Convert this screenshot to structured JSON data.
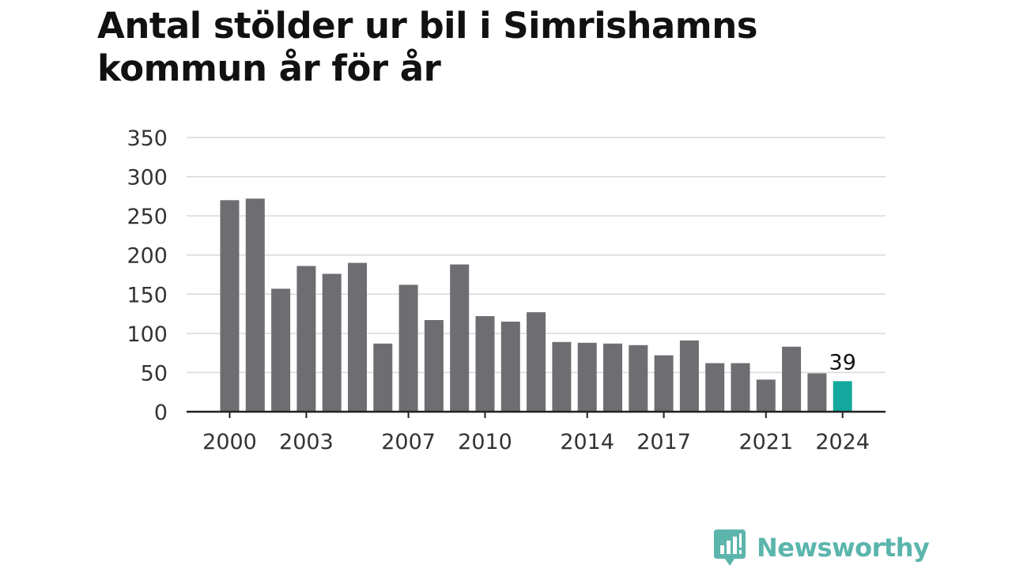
{
  "title": "Antal stölder ur bil i Simrishamns kommun år för år",
  "brand": {
    "name": "Newsworthy",
    "logo_icon": "chat-bubble-bar-chart-icon",
    "color": "#5bb5ac"
  },
  "colors": {
    "bar": "#6e6d72",
    "highlight_bar": "#13a89e",
    "gridline": "#d9d9d9",
    "axis": "#222222"
  },
  "chart_data": {
    "type": "bar",
    "title": "Antal stölder ur bil i Simrishamns kommun år för år",
    "xlabel": "",
    "ylabel": "",
    "categories": [
      2000,
      2001,
      2002,
      2003,
      2004,
      2005,
      2006,
      2007,
      2008,
      2009,
      2010,
      2011,
      2012,
      2013,
      2014,
      2015,
      2016,
      2017,
      2018,
      2019,
      2020,
      2021,
      2022,
      2023,
      2024
    ],
    "values": [
      270,
      272,
      157,
      186,
      176,
      190,
      87,
      162,
      117,
      188,
      122,
      115,
      127,
      89,
      88,
      87,
      85,
      72,
      91,
      62,
      62,
      41,
      83,
      49,
      39
    ],
    "x_tick_labels": [
      "2000",
      "2003",
      "2007",
      "2010",
      "2014",
      "2017",
      "2021",
      "2024"
    ],
    "y_ticks": [
      0,
      50,
      100,
      150,
      200,
      250,
      300,
      350
    ],
    "ylim": [
      0,
      350
    ],
    "grid": true,
    "highlight": {
      "category": 2024,
      "label": "39"
    }
  }
}
